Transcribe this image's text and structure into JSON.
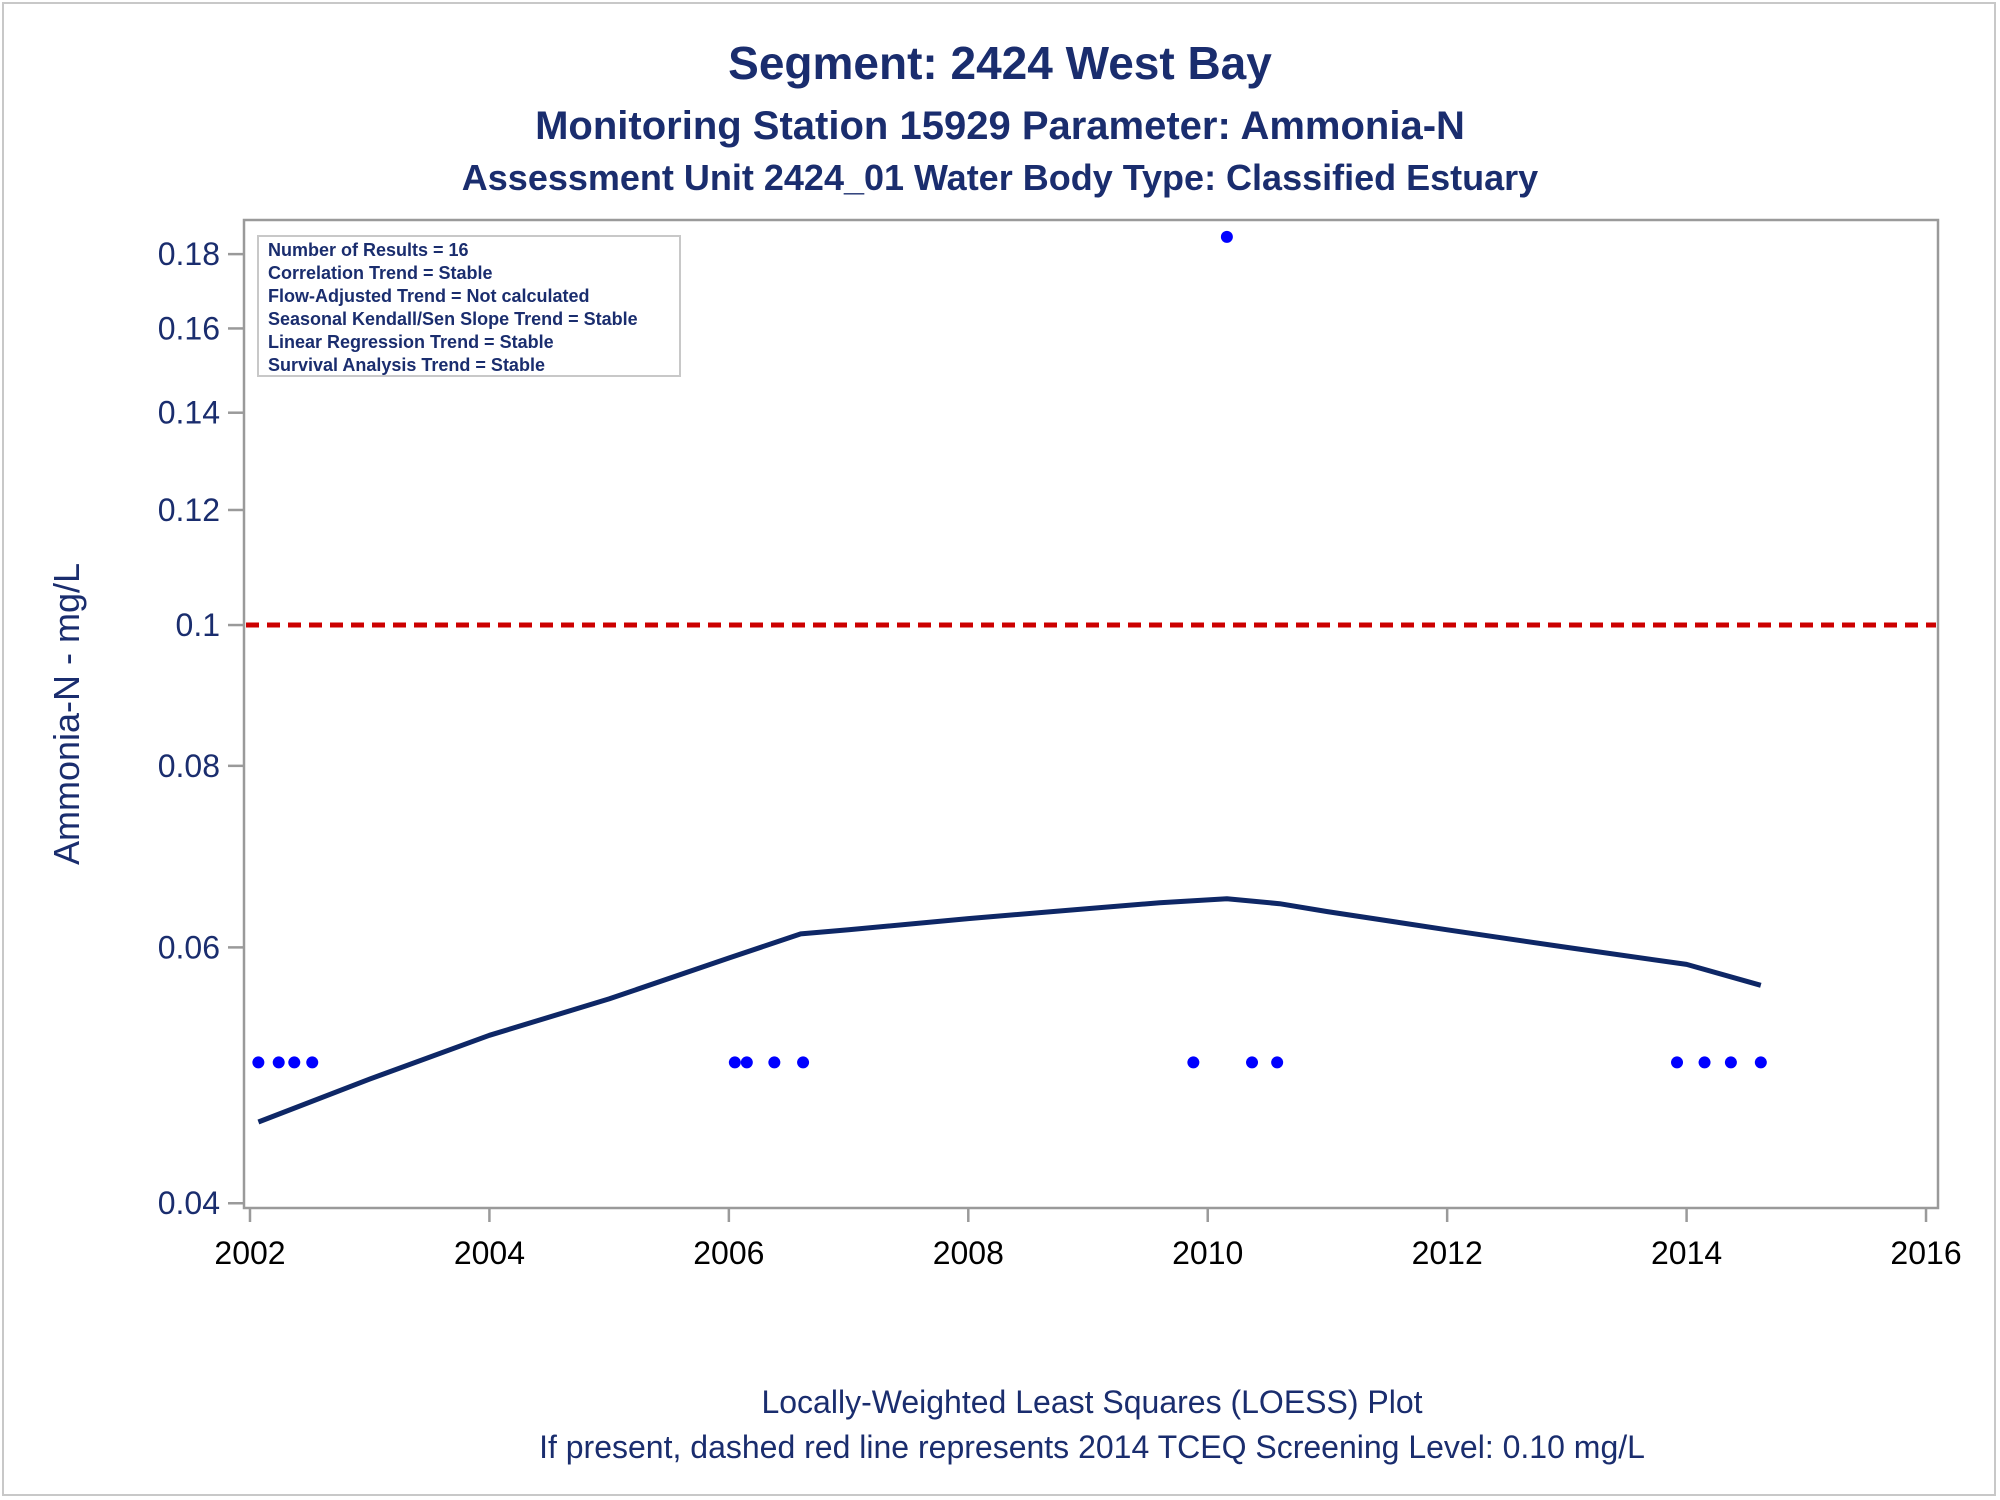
{
  "chart_data": {
    "type": "scatter",
    "title": "Segment: 2424  West Bay",
    "subtitle1": "Monitoring Station 15929 Parameter: Ammonia-N",
    "subtitle2": "Assessment Unit 2424_01   Water Body Type: Classified Estuary",
    "ylabel": "Ammonia-N - mg/L",
    "footnote1": "Locally-Weighted Least Squares (LOESS) Plot",
    "footnote2": "If present, dashed red line represents 2014 TCEQ Screening Level: 0.10 mg/L",
    "y_scale": "log",
    "xlim": [
      2001.95,
      2016.1
    ],
    "ylim": [
      0.0397,
      0.19
    ],
    "x_ticks": [
      2002,
      2004,
      2006,
      2008,
      2010,
      2012,
      2014,
      2016
    ],
    "y_ticks": [
      0.04,
      0.06,
      0.08,
      0.1,
      0.12,
      0.14,
      0.16,
      0.18
    ],
    "stats": [
      "Number of Results = 16",
      "Correlation Trend = Stable",
      "Flow-Adjusted Trend = Not calculated",
      "Seasonal Kendall/Sen Slope Trend = Stable",
      "Linear Regression Trend = Stable",
      "Survival Analysis Trend = Stable"
    ],
    "screening_level": 0.1,
    "points": [
      {
        "x": 2002.07,
        "y": 0.05
      },
      {
        "x": 2002.24,
        "y": 0.05
      },
      {
        "x": 2002.37,
        "y": 0.05
      },
      {
        "x": 2002.52,
        "y": 0.05
      },
      {
        "x": 2006.05,
        "y": 0.05
      },
      {
        "x": 2006.15,
        "y": 0.05
      },
      {
        "x": 2006.38,
        "y": 0.05
      },
      {
        "x": 2006.62,
        "y": 0.05
      },
      {
        "x": 2009.88,
        "y": 0.05
      },
      {
        "x": 2010.16,
        "y": 0.185
      },
      {
        "x": 2010.37,
        "y": 0.05
      },
      {
        "x": 2010.58,
        "y": 0.05
      },
      {
        "x": 2013.92,
        "y": 0.05
      },
      {
        "x": 2014.15,
        "y": 0.05
      },
      {
        "x": 2014.37,
        "y": 0.05
      },
      {
        "x": 2014.62,
        "y": 0.05
      }
    ],
    "loess": [
      {
        "x": 2002.07,
        "y": 0.0455
      },
      {
        "x": 2003.0,
        "y": 0.0487
      },
      {
        "x": 2004.0,
        "y": 0.0522
      },
      {
        "x": 2005.0,
        "y": 0.0553
      },
      {
        "x": 2006.0,
        "y": 0.059
      },
      {
        "x": 2006.6,
        "y": 0.0613
      },
      {
        "x": 2007.0,
        "y": 0.0617
      },
      {
        "x": 2008.0,
        "y": 0.0628
      },
      {
        "x": 2009.0,
        "y": 0.0638
      },
      {
        "x": 2009.6,
        "y": 0.0644
      },
      {
        "x": 2010.16,
        "y": 0.0648
      },
      {
        "x": 2010.6,
        "y": 0.0643
      },
      {
        "x": 2011.0,
        "y": 0.0635
      },
      {
        "x": 2012.0,
        "y": 0.0617
      },
      {
        "x": 2013.0,
        "y": 0.06
      },
      {
        "x": 2014.0,
        "y": 0.0584
      },
      {
        "x": 2014.62,
        "y": 0.0565
      }
    ],
    "colors": {
      "text": "#1a2d6e",
      "points": "#0000ff",
      "loess": "#0e2766",
      "screening": "#cc0000",
      "axis": "#9a9a9a"
    }
  }
}
